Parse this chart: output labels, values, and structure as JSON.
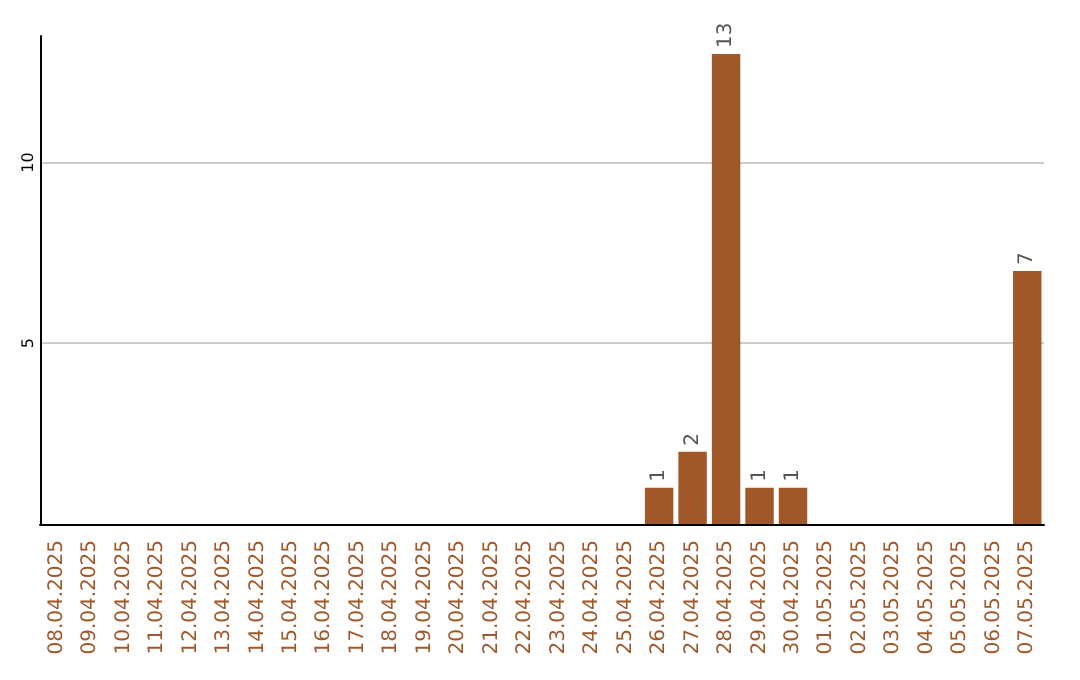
{
  "chart_data": {
    "type": "bar",
    "categories": [
      "08.04.2025",
      "09.04.2025",
      "10.04.2025",
      "11.04.2025",
      "12.04.2025",
      "13.04.2025",
      "14.04.2025",
      "15.04.2025",
      "16.04.2025",
      "17.04.2025",
      "18.04.2025",
      "19.04.2025",
      "20.04.2025",
      "21.04.2025",
      "22.04.2025",
      "23.04.2025",
      "24.04.2025",
      "25.04.2025",
      "26.04.2025",
      "27.04.2025",
      "28.04.2025",
      "29.04.2025",
      "30.04.2025",
      "01.05.2025",
      "02.05.2025",
      "03.05.2025",
      "04.05.2025",
      "05.05.2025",
      "06.05.2025",
      "07.05.2025"
    ],
    "values": [
      0,
      0,
      0,
      0,
      0,
      0,
      0,
      0,
      0,
      0,
      0,
      0,
      0,
      0,
      0,
      0,
      0,
      0,
      1,
      2,
      13,
      1,
      1,
      0,
      0,
      0,
      0,
      0,
      0,
      7
    ],
    "value_labels": [
      null,
      null,
      null,
      null,
      null,
      null,
      null,
      null,
      null,
      null,
      null,
      null,
      null,
      null,
      null,
      null,
      null,
      null,
      "1",
      "2",
      "13",
      "1",
      "1",
      null,
      null,
      null,
      null,
      null,
      null,
      "7"
    ],
    "color": "#a0582a",
    "ylim": [
      0,
      13.5
    ],
    "yticks": [
      5,
      10
    ],
    "grid": "y"
  }
}
